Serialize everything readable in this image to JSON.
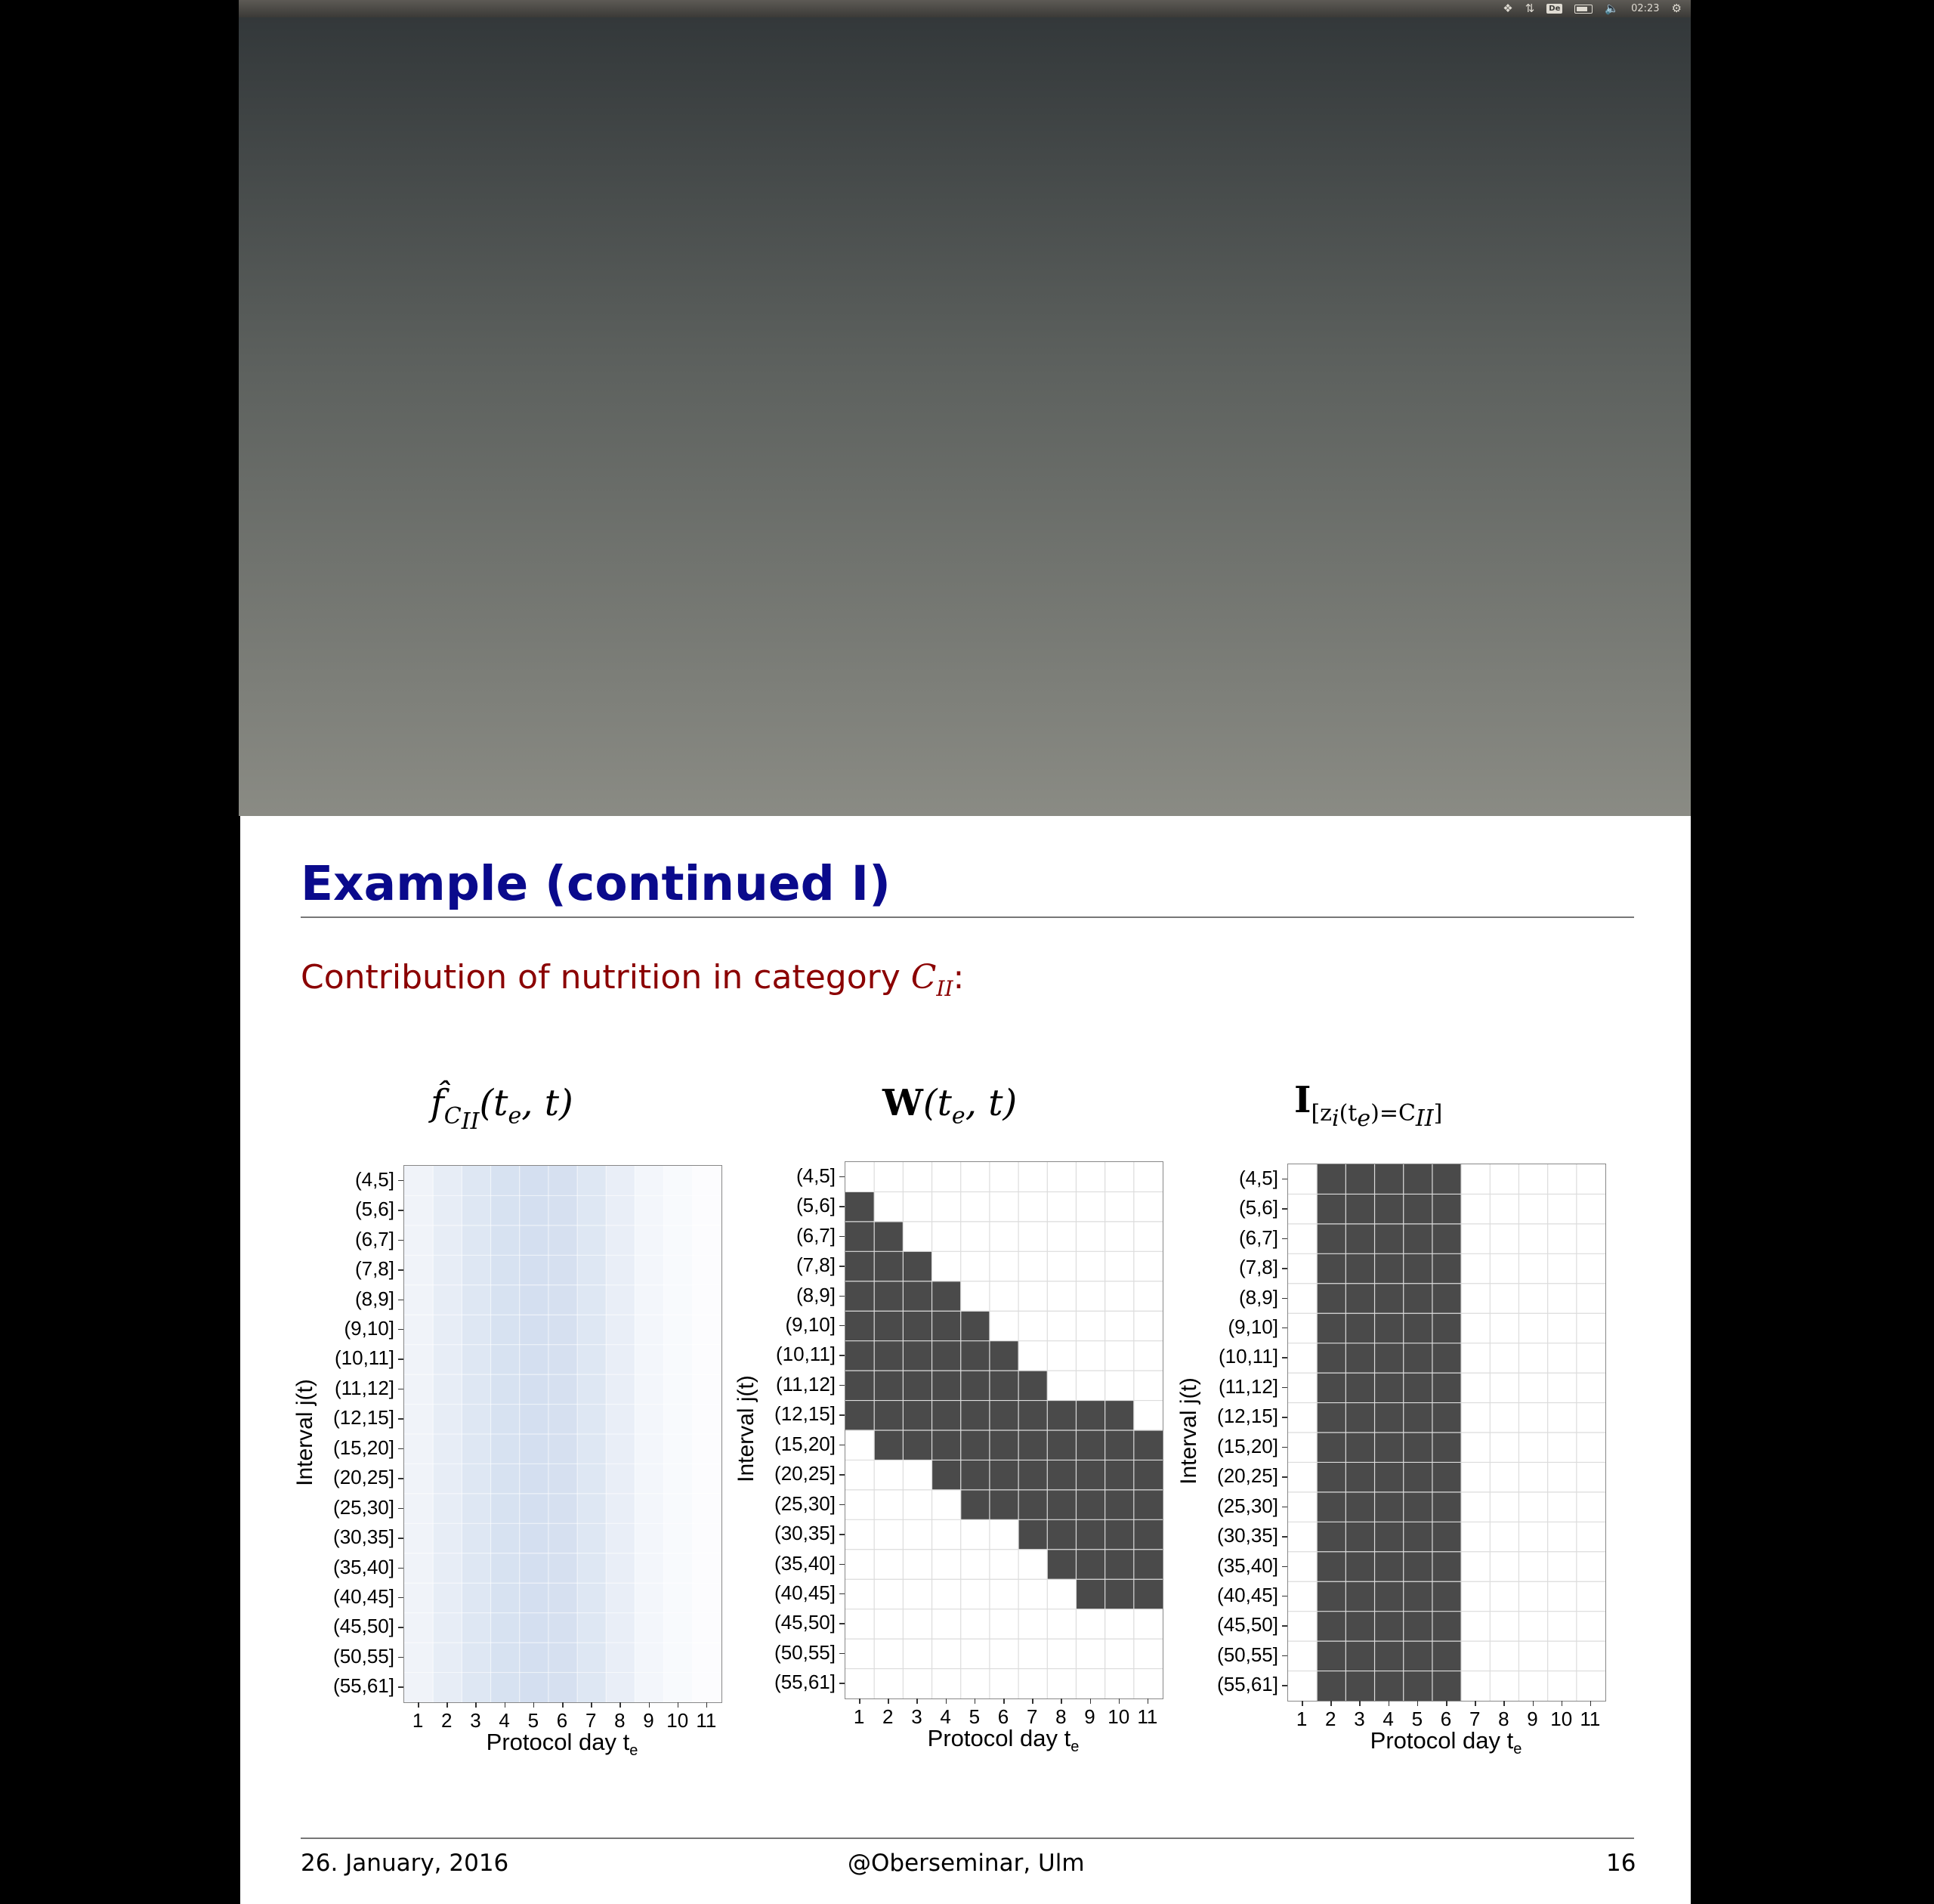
{
  "tray": {
    "clock": "02:23",
    "keyboard_layout": "De",
    "icons": [
      "dropbox-icon",
      "network-arrows-icon",
      "keyboard-layout-icon",
      "battery-icon",
      "volume-icon",
      "clock",
      "gear-icon"
    ]
  },
  "slide": {
    "title": "Example (continued I)",
    "subtitle_text": "Contribution of nutrition in category ",
    "subtitle_math": "C",
    "subtitle_math_sub": "II",
    "subtitle_suffix": ":",
    "footer": {
      "date": "26. January, 2016",
      "venue": "@Oberseminar, Ulm",
      "page": "16"
    }
  },
  "plots": {
    "p1": {
      "title_main": "f̂",
      "title_sub": "C",
      "title_subsub": "II",
      "title_args": "(t",
      "title_args_sub": "e",
      "title_args_end": ", t)"
    },
    "p2": {
      "title_main": "W",
      "title_args": "(t",
      "title_args_sub": "e",
      "title_args_end": ", t)"
    },
    "p3": {
      "title_main": "I",
      "title_sub": "[z",
      "title_sub2": "i",
      "title_sub3": "(t",
      "title_sub4": "e",
      "title_sub5": ")=C",
      "title_sub6": "II",
      "title_sub7": "]"
    }
  },
  "chart_data": [
    {
      "type": "heatmap",
      "xlabel": "Protocol day t",
      "xlabel_sub": "e",
      "ylabel": "Interval j(t)",
      "x": [
        "1",
        "2",
        "3",
        "4",
        "5",
        "6",
        "7",
        "8",
        "9",
        "10",
        "11"
      ],
      "y": [
        "(4,5]",
        "(5,6]",
        "(6,7]",
        "(7,8]",
        "(8,9]",
        "(9,10]",
        "(10,11]",
        "(11,12]",
        "(12,15]",
        "(15,20]",
        "(20,25]",
        "(25,30]",
        "(30,35]",
        "(35,40]",
        "(40,45]",
        "(45,50]",
        "(50,55]",
        "(55,61]"
      ],
      "column_intensity": [
        0.18,
        0.28,
        0.38,
        0.46,
        0.5,
        0.48,
        0.38,
        0.26,
        0.14,
        0.08,
        0.04
      ],
      "low_color": "#ffffff",
      "high_color": "#a9bfe0"
    },
    {
      "type": "heatmap",
      "xlabel": "Protocol day t",
      "xlabel_sub": "e",
      "ylabel": "Interval j(t)",
      "x": [
        "1",
        "2",
        "3",
        "4",
        "5",
        "6",
        "7",
        "8",
        "9",
        "10",
        "11"
      ],
      "y": [
        "(4,5]",
        "(5,6]",
        "(6,7]",
        "(7,8]",
        "(8,9]",
        "(9,10]",
        "(10,11]",
        "(11,12]",
        "(12,15]",
        "(15,20]",
        "(20,25]",
        "(25,30]",
        "(30,35]",
        "(35,40]",
        "(40,45]",
        "(45,50]",
        "(50,55]",
        "(55,61]"
      ],
      "filled_row_ranges": [
        [
          1,
          8
        ],
        [
          2,
          9
        ],
        [
          3,
          9
        ],
        [
          4,
          10
        ],
        [
          5,
          11
        ],
        [
          6,
          11
        ],
        [
          7,
          12
        ],
        [
          8,
          13
        ],
        [
          8,
          14
        ],
        [
          8,
          14
        ],
        [
          9,
          14
        ]
      ],
      "fill_color": "#4a4a4a"
    },
    {
      "type": "heatmap",
      "xlabel": "Protocol day t",
      "xlabel_sub": "e",
      "ylabel": "Interval j(t)",
      "x": [
        "1",
        "2",
        "3",
        "4",
        "5",
        "6",
        "7",
        "8",
        "9",
        "10",
        "11"
      ],
      "y": [
        "(4,5]",
        "(5,6]",
        "(6,7]",
        "(7,8]",
        "(8,9]",
        "(9,10]",
        "(10,11]",
        "(11,12]",
        "(12,15]",
        "(15,20]",
        "(20,25]",
        "(25,30]",
        "(30,35]",
        "(35,40]",
        "(40,45]",
        "(45,50]",
        "(50,55]",
        "(55,61]"
      ],
      "filled_columns": [
        "2",
        "3",
        "4",
        "5",
        "6"
      ],
      "fill_color": "#4a4a4a"
    }
  ]
}
